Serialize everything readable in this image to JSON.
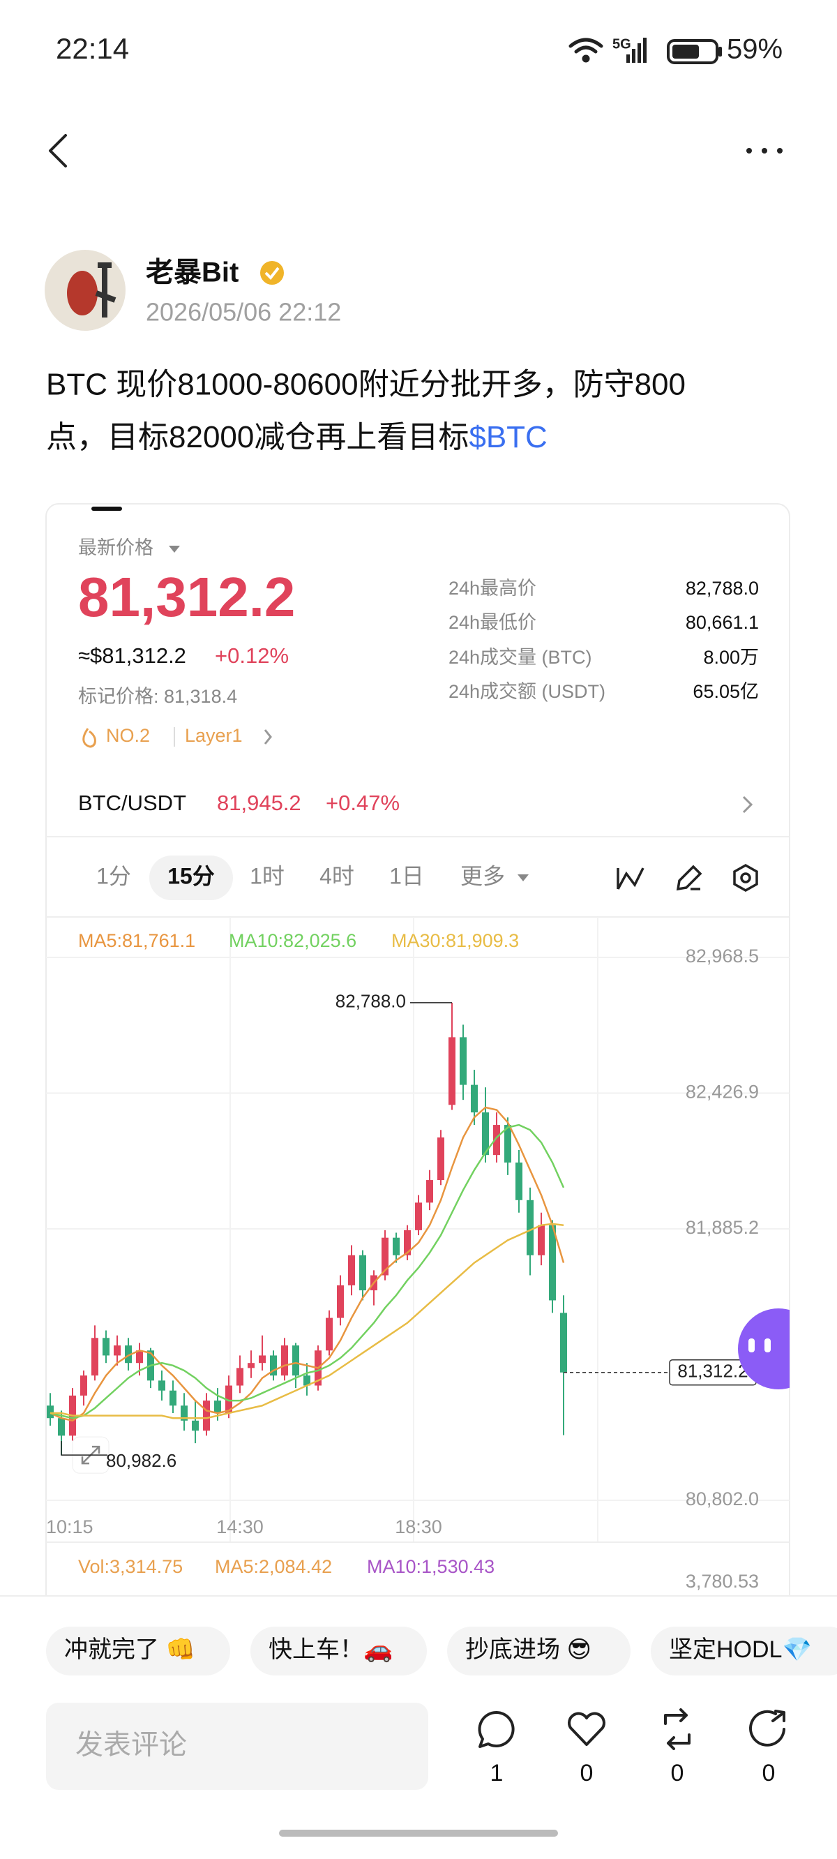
{
  "status_bar": {
    "time": "22:14",
    "network": "5G",
    "battery": "59%"
  },
  "post": {
    "author": "老暴Bit",
    "date": "2026/05/06 22:12",
    "text_lines": [
      "BTC 现价81000-80600附近分批开多，防守800",
      "点，目标82000减仓再上看目标"
    ],
    "tag": "$BTC"
  },
  "ticker": {
    "price_label": "最新价格",
    "price": "81,312.2",
    "usd_price": "≈$81,312.2",
    "change": "+0.12%",
    "mark_price": "标记价格: 81,318.4",
    "rank": "NO.2",
    "category": "Layer1",
    "stats": [
      {
        "label": "24h最高价",
        "value": "82,788.0"
      },
      {
        "label": "24h最低价",
        "value": "80,661.1"
      },
      {
        "label": "24h成交量 (BTC)",
        "value": "8.00万"
      },
      {
        "label": "24h成交额 (USDT)",
        "value": "65.05亿"
      }
    ],
    "pair": {
      "name": "BTC/USDT",
      "price": "81,945.2",
      "change": "+0.47%"
    },
    "timeframes": [
      "1分",
      "15分",
      "1时",
      "4时",
      "1日",
      "更多"
    ]
  },
  "chart_data": {
    "type": "candlestick",
    "up_color": "#e0435b",
    "down_color": "#33a97a",
    "grid": true,
    "categories": [
      "10:15",
      null,
      null,
      null,
      null,
      null,
      null,
      null,
      null,
      null,
      null,
      null,
      null,
      null,
      null,
      null,
      null,
      "14:30",
      null,
      null,
      null,
      null,
      null,
      null,
      null,
      null,
      null,
      null,
      null,
      null,
      null,
      null,
      null,
      "18:30",
      null,
      null,
      null,
      null,
      null,
      null,
      null,
      null,
      null,
      null,
      null,
      null,
      null
    ],
    "ohlc": [
      [
        81180,
        81230,
        81100,
        81130
      ],
      [
        81130,
        81160,
        80982.6,
        81060
      ],
      [
        81060,
        81250,
        81040,
        81220
      ],
      [
        81220,
        81320,
        81180,
        81300
      ],
      [
        81300,
        81500,
        81280,
        81450
      ],
      [
        81450,
        81480,
        81350,
        81380
      ],
      [
        81380,
        81460,
        81340,
        81420
      ],
      [
        81420,
        81450,
        81320,
        81350
      ],
      [
        81350,
        81430,
        81300,
        81400
      ],
      [
        81400,
        81410,
        81250,
        81280
      ],
      [
        81280,
        81320,
        81200,
        81240
      ],
      [
        81240,
        81280,
        81150,
        81180
      ],
      [
        81180,
        81230,
        81080,
        81120
      ],
      [
        81120,
        81200,
        81030,
        81080
      ],
      [
        81080,
        81230,
        81060,
        81200
      ],
      [
        81200,
        81250,
        81120,
        81150
      ],
      [
        81150,
        81300,
        81130,
        81260
      ],
      [
        81260,
        81380,
        81230,
        81330
      ],
      [
        81330,
        81400,
        81290,
        81350
      ],
      [
        81350,
        81460,
        81320,
        81380
      ],
      [
        81380,
        81400,
        81280,
        81300
      ],
      [
        81300,
        81450,
        81280,
        81420
      ],
      [
        81420,
        81430,
        81250,
        81300
      ],
      [
        81300,
        81350,
        81220,
        81260
      ],
      [
        81260,
        81420,
        81240,
        81400
      ],
      [
        81400,
        81560,
        81380,
        81530
      ],
      [
        81530,
        81700,
        81500,
        81660
      ],
      [
        81660,
        81820,
        81620,
        81780
      ],
      [
        81780,
        81800,
        81600,
        81640
      ],
      [
        81640,
        81720,
        81580,
        81700
      ],
      [
        81700,
        81880,
        81680,
        81850
      ],
      [
        81850,
        81870,
        81750,
        81780
      ],
      [
        81780,
        81900,
        81760,
        81880
      ],
      [
        81880,
        82020,
        81860,
        81990
      ],
      [
        81990,
        82120,
        81960,
        82080
      ],
      [
        82080,
        82280,
        82060,
        82250
      ],
      [
        82380,
        82788.0,
        82360,
        82650
      ],
      [
        82650,
        82700,
        82400,
        82460
      ],
      [
        82460,
        82520,
        82300,
        82350
      ],
      [
        82350,
        82450,
        82150,
        82180
      ],
      [
        82180,
        82350,
        82150,
        82300
      ],
      [
        82300,
        82330,
        82100,
        82150
      ],
      [
        82150,
        82200,
        81950,
        82000
      ],
      [
        82000,
        82050,
        81700,
        81780
      ],
      [
        81780,
        81950,
        81740,
        81900
      ],
      [
        81900,
        81920,
        81550,
        81600
      ],
      [
        81550,
        81620,
        81062,
        81312.2
      ]
    ],
    "series": [
      {
        "name": "MA5:81,761.1",
        "color": "#e8953f",
        "values": [
          81150,
          81130,
          81120,
          81150,
          81230,
          81300,
          81350,
          81380,
          81400,
          81390,
          81340,
          81300,
          81250,
          81200,
          81160,
          81150,
          81160,
          81190,
          81230,
          81290,
          81320,
          81340,
          81350,
          81340,
          81330,
          81370,
          81440,
          81530,
          81610,
          81670,
          81720,
          81760,
          81790,
          81830,
          81900,
          82000,
          82130,
          82250,
          82330,
          82370,
          82360,
          82310,
          82220,
          82120,
          82020,
          81900,
          81750
        ]
      },
      {
        "name": "MA10:82,025.6",
        "color": "#72d160",
        "values": [
          81150,
          81140,
          81130,
          81140,
          81170,
          81210,
          81250,
          81290,
          81320,
          81340,
          81350,
          81340,
          81320,
          81290,
          81250,
          81220,
          81200,
          81200,
          81210,
          81230,
          81250,
          81270,
          81290,
          81310,
          81320,
          81340,
          81370,
          81410,
          81460,
          81510,
          81570,
          81620,
          81680,
          81730,
          81790,
          81860,
          81950,
          82040,
          82120,
          82190,
          82250,
          82290,
          82300,
          82280,
          82230,
          82150,
          82050
        ]
      },
      {
        "name": "MA30:81,909.3",
        "color": "#e8bc45",
        "values": [
          81150,
          81150,
          81140,
          81140,
          81140,
          81140,
          81140,
          81140,
          81140,
          81140,
          81140,
          81130,
          81130,
          81130,
          81130,
          81140,
          81150,
          81160,
          81170,
          81180,
          81200,
          81220,
          81240,
          81260,
          81280,
          81300,
          81330,
          81360,
          81390,
          81420,
          81450,
          81480,
          81510,
          81550,
          81590,
          81630,
          81670,
          81710,
          81750,
          81780,
          81810,
          81840,
          81860,
          81880,
          81900,
          81905,
          81900
        ]
      }
    ],
    "ylim": [
      80802.0,
      82968.5
    ],
    "yticks": [
      {
        "value": 82968.5,
        "label": "82,968.5"
      },
      {
        "value": 82426.9,
        "label": "82,426.9"
      },
      {
        "value": 81885.2,
        "label": "81,885.2"
      },
      {
        "value": 80802.0,
        "label": "80,802.0"
      }
    ],
    "high_label": "82,788.0",
    "low_label": "80,982.6",
    "current_price_label": "81,312.2",
    "volume_labels": [
      {
        "text": "Vol:3,314.75",
        "color": "#e8a04f"
      },
      {
        "text": "MA5:2,084.42",
        "color": "#e8a04f"
      },
      {
        "text": "MA10:1,530.43",
        "color": "#a855c7"
      }
    ],
    "volume_axis_label": "3,780.53"
  },
  "reactions": {
    "chips": [
      "冲就完了 👊",
      "快上车！🚗",
      "抄底进场 😎",
      "坚定HODL💎"
    ],
    "comment_placeholder": "发表评论",
    "counts": [
      "1",
      "0",
      "0",
      "0"
    ]
  }
}
